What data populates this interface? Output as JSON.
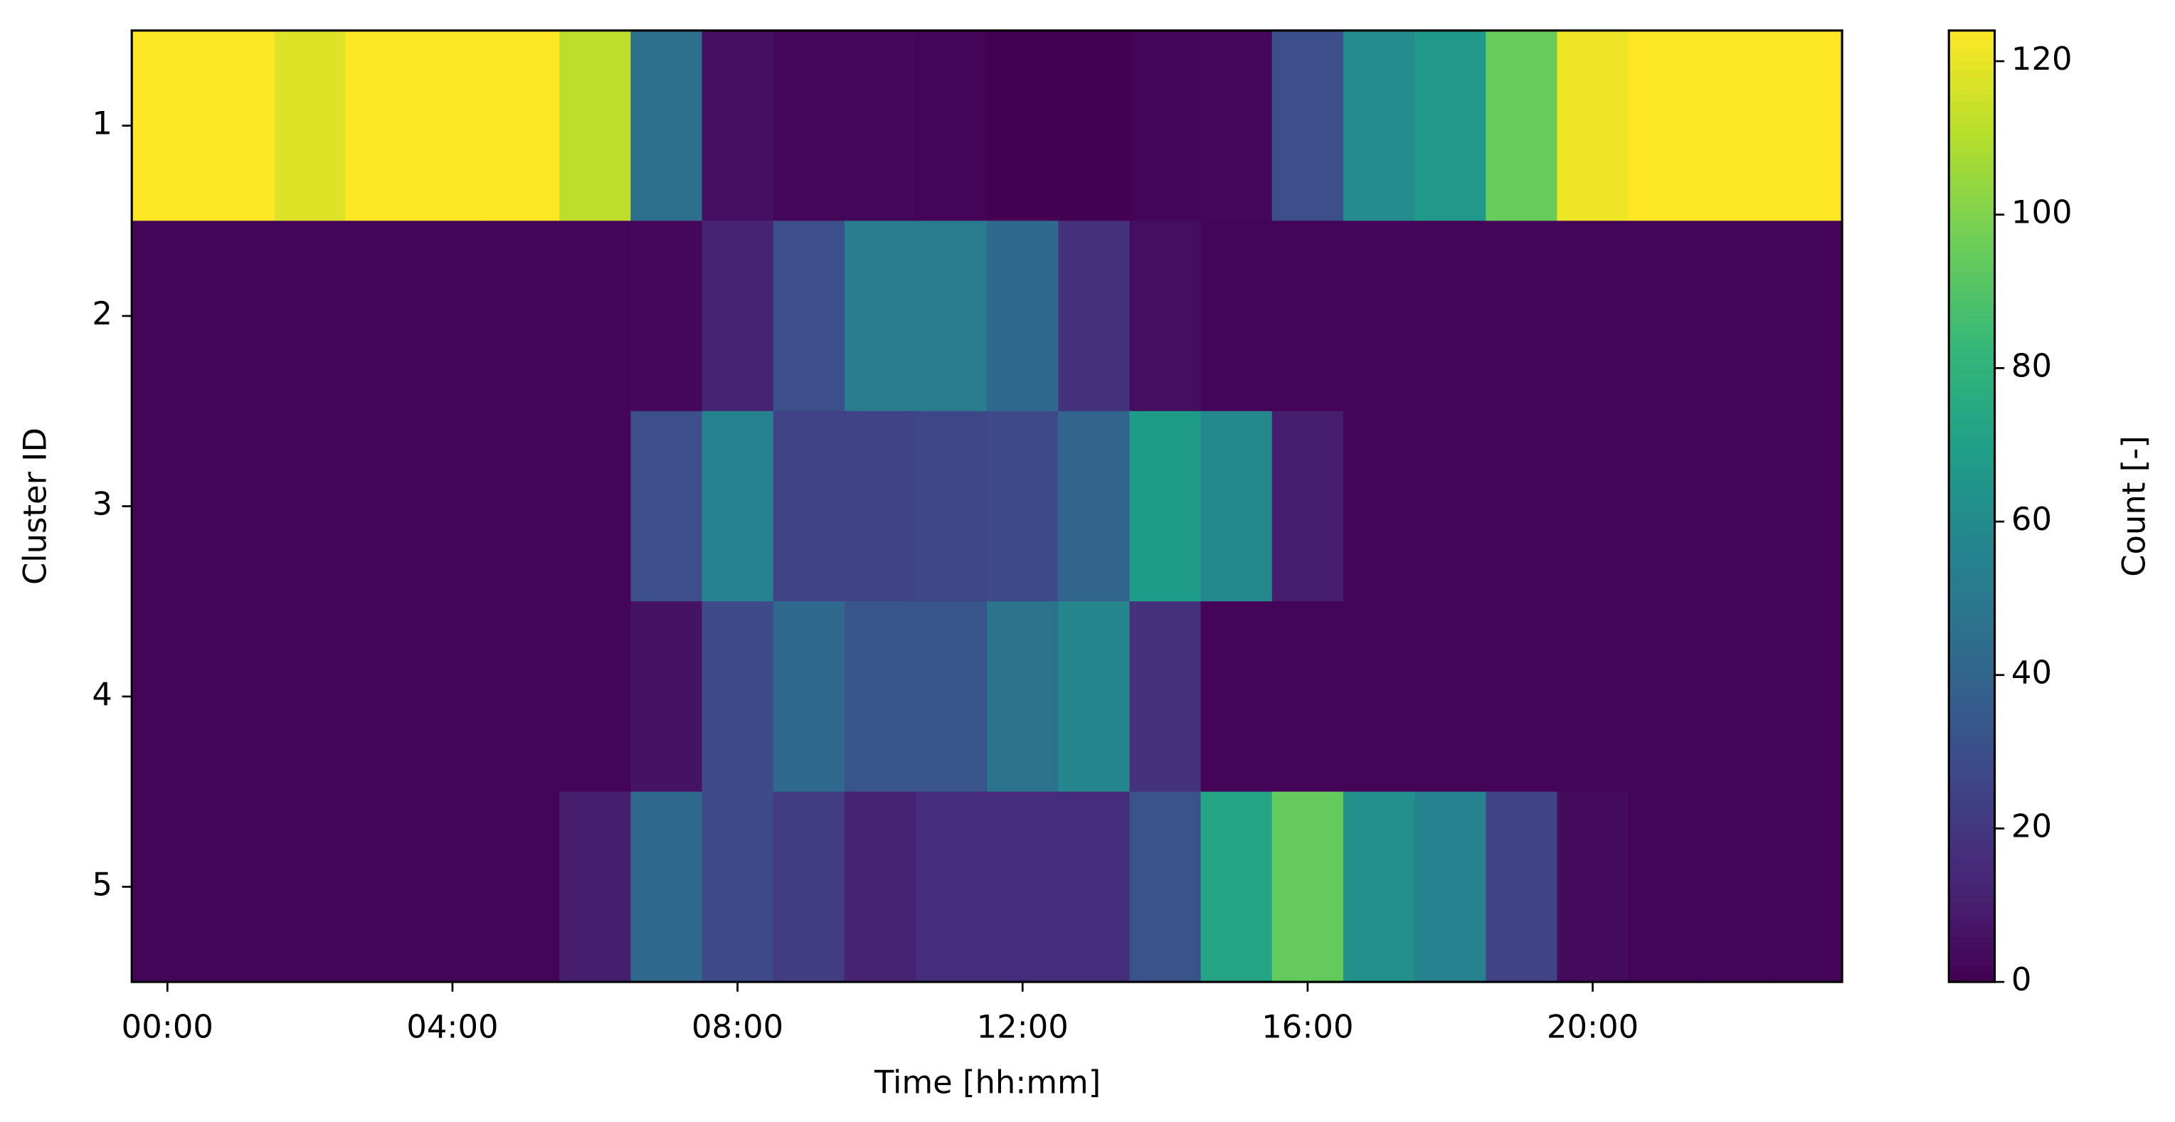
{
  "chart_data": {
    "type": "heatmap",
    "x_label": "Time [hh:mm]",
    "y_label": "Cluster ID",
    "colorbar_label": "Count [-]",
    "colormap": "viridis",
    "x": [
      0,
      1,
      2,
      3,
      4,
      5,
      6,
      7,
      8,
      9,
      10,
      11,
      12,
      13,
      14,
      15,
      16,
      17,
      18,
      19,
      20,
      21,
      22,
      23
    ],
    "y_categories": [
      "1",
      "2",
      "3",
      "4",
      "5"
    ],
    "values": [
      [
        124,
        124,
        118,
        124,
        124,
        124,
        112,
        45,
        5,
        2,
        2,
        1,
        0,
        0,
        1,
        2,
        30,
        60,
        66,
        95,
        121,
        124,
        124,
        124
      ],
      [
        1,
        1,
        1,
        1,
        1,
        1,
        1,
        2,
        12,
        30,
        52,
        52,
        42,
        18,
        5,
        1,
        1,
        1,
        1,
        1,
        1,
        1,
        1,
        1
      ],
      [
        1,
        1,
        1,
        1,
        1,
        1,
        1,
        30,
        55,
        25,
        25,
        27,
        28,
        40,
        68,
        58,
        10,
        1,
        1,
        1,
        1,
        1,
        1,
        1
      ],
      [
        1,
        1,
        1,
        1,
        1,
        1,
        1,
        6,
        28,
        42,
        33,
        33,
        47,
        57,
        18,
        1,
        1,
        1,
        1,
        1,
        1,
        1,
        1,
        1
      ],
      [
        1,
        1,
        1,
        1,
        1,
        1,
        10,
        42,
        28,
        22,
        12,
        16,
        16,
        16,
        32,
        72,
        94,
        62,
        55,
        25,
        4,
        1,
        1,
        1
      ]
    ],
    "xlim": [
      -0.5,
      23.5
    ],
    "xticks": [
      {
        "value": 0,
        "label": "00:00"
      },
      {
        "value": 4,
        "label": "04:00"
      },
      {
        "value": 8,
        "label": "08:00"
      },
      {
        "value": 12,
        "label": "12:00"
      },
      {
        "value": 16,
        "label": "16:00"
      },
      {
        "value": 20,
        "label": "20:00"
      }
    ],
    "clim": [
      0,
      124
    ],
    "cticks": [
      0,
      20,
      40,
      60,
      80,
      100,
      120
    ]
  }
}
